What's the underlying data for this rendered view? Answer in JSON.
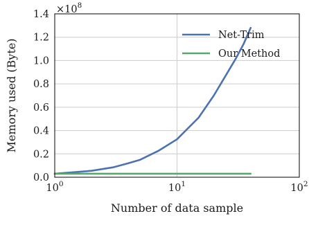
{
  "chart_data": {
    "type": "line",
    "xlabel": "Number of data sample",
    "ylabel": "Memory used (Byte)",
    "x_scale": "log",
    "xlim": [
      1,
      100
    ],
    "ylim": [
      0,
      140000000
    ],
    "y_multiplier_label": "×10",
    "y_multiplier_exponent": "8",
    "x_ticks": [
      {
        "value": 1,
        "base": "10",
        "exp": "0"
      },
      {
        "value": 10,
        "base": "10",
        "exp": "1"
      },
      {
        "value": 100,
        "base": "10",
        "exp": "2"
      }
    ],
    "y_ticks": [
      {
        "value": 0,
        "label": "0.0"
      },
      {
        "value": 20000000,
        "label": "0.2"
      },
      {
        "value": 40000000,
        "label": "0.4"
      },
      {
        "value": 60000000,
        "label": "0.6"
      },
      {
        "value": 80000000,
        "label": "0.8"
      },
      {
        "value": 100000000,
        "label": "1.0"
      },
      {
        "value": 120000000,
        "label": "1.2"
      },
      {
        "value": 140000000,
        "label": "1.4"
      }
    ],
    "grid": true,
    "legend_position": "top-right",
    "series": [
      {
        "name": "Net-Trim",
        "color": "#4c72b0",
        "x": [
          1,
          2,
          3,
          4,
          5,
          7,
          10,
          15,
          20,
          25,
          30,
          35,
          40
        ],
        "y": [
          3000000,
          5500000,
          8500000,
          12000000,
          15000000,
          22500000,
          32500000,
          51000000,
          70000000,
          87000000,
          101000000,
          114000000,
          128000000
        ]
      },
      {
        "name": "Our Method",
        "color": "#55a868",
        "x": [
          1,
          40
        ],
        "y": [
          3000000,
          3000000
        ]
      }
    ]
  }
}
